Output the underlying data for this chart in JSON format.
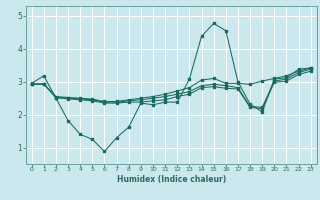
{
  "xlabel": "Humidex (Indice chaleur)",
  "background_color": "#cce8ef",
  "grid_color": "#ffffff",
  "line_color": "#1a6b5e",
  "xlim": [
    -0.5,
    23.5
  ],
  "ylim": [
    0.5,
    5.3
  ],
  "yticks": [
    1,
    2,
    3,
    4,
    5
  ],
  "xticks": [
    0,
    1,
    2,
    3,
    4,
    5,
    6,
    7,
    8,
    9,
    10,
    11,
    12,
    13,
    14,
    15,
    16,
    17,
    18,
    19,
    20,
    21,
    22,
    23
  ],
  "lines": [
    {
      "x": [
        0,
        1,
        2,
        3,
        4,
        5,
        6,
        7,
        8,
        9,
        10,
        11,
        12,
        13,
        14,
        15,
        16,
        17,
        18,
        19,
        20,
        21,
        22,
        23
      ],
      "y": [
        2.95,
        3.18,
        2.5,
        1.82,
        1.4,
        1.25,
        0.88,
        1.3,
        1.62,
        2.35,
        2.3,
        2.38,
        2.38,
        3.08,
        4.38,
        4.77,
        4.55,
        3.0,
        2.32,
        2.08,
        3.08,
        3.12,
        3.38,
        3.42
      ]
    },
    {
      "x": [
        0,
        1,
        2,
        3,
        4,
        5,
        6,
        7,
        8,
        9,
        10,
        11,
        12,
        13,
        14,
        15,
        16,
        17,
        18,
        19,
        20,
        21,
        22,
        23
      ],
      "y": [
        2.93,
        2.93,
        2.55,
        2.52,
        2.5,
        2.47,
        2.4,
        2.4,
        2.45,
        2.5,
        2.55,
        2.62,
        2.72,
        2.82,
        3.05,
        3.1,
        2.95,
        2.95,
        2.92,
        3.02,
        3.1,
        3.18,
        3.32,
        3.42
      ]
    },
    {
      "x": [
        0,
        1,
        2,
        3,
        4,
        5,
        6,
        7,
        8,
        9,
        10,
        11,
        12,
        13,
        14,
        15,
        16,
        17,
        18,
        19,
        20,
        21,
        22,
        23
      ],
      "y": [
        2.93,
        2.93,
        2.52,
        2.5,
        2.48,
        2.45,
        2.38,
        2.38,
        2.42,
        2.45,
        2.5,
        2.55,
        2.62,
        2.7,
        2.88,
        2.92,
        2.88,
        2.82,
        2.25,
        2.22,
        3.02,
        3.08,
        3.28,
        3.38
      ]
    },
    {
      "x": [
        0,
        1,
        2,
        3,
        4,
        5,
        6,
        7,
        8,
        9,
        10,
        11,
        12,
        13,
        14,
        15,
        16,
        17,
        18,
        19,
        20,
        21,
        22,
        23
      ],
      "y": [
        2.93,
        2.93,
        2.52,
        2.48,
        2.45,
        2.42,
        2.35,
        2.35,
        2.38,
        2.38,
        2.42,
        2.45,
        2.55,
        2.62,
        2.82,
        2.85,
        2.8,
        2.78,
        2.22,
        2.18,
        2.98,
        3.02,
        3.22,
        3.32
      ]
    }
  ]
}
